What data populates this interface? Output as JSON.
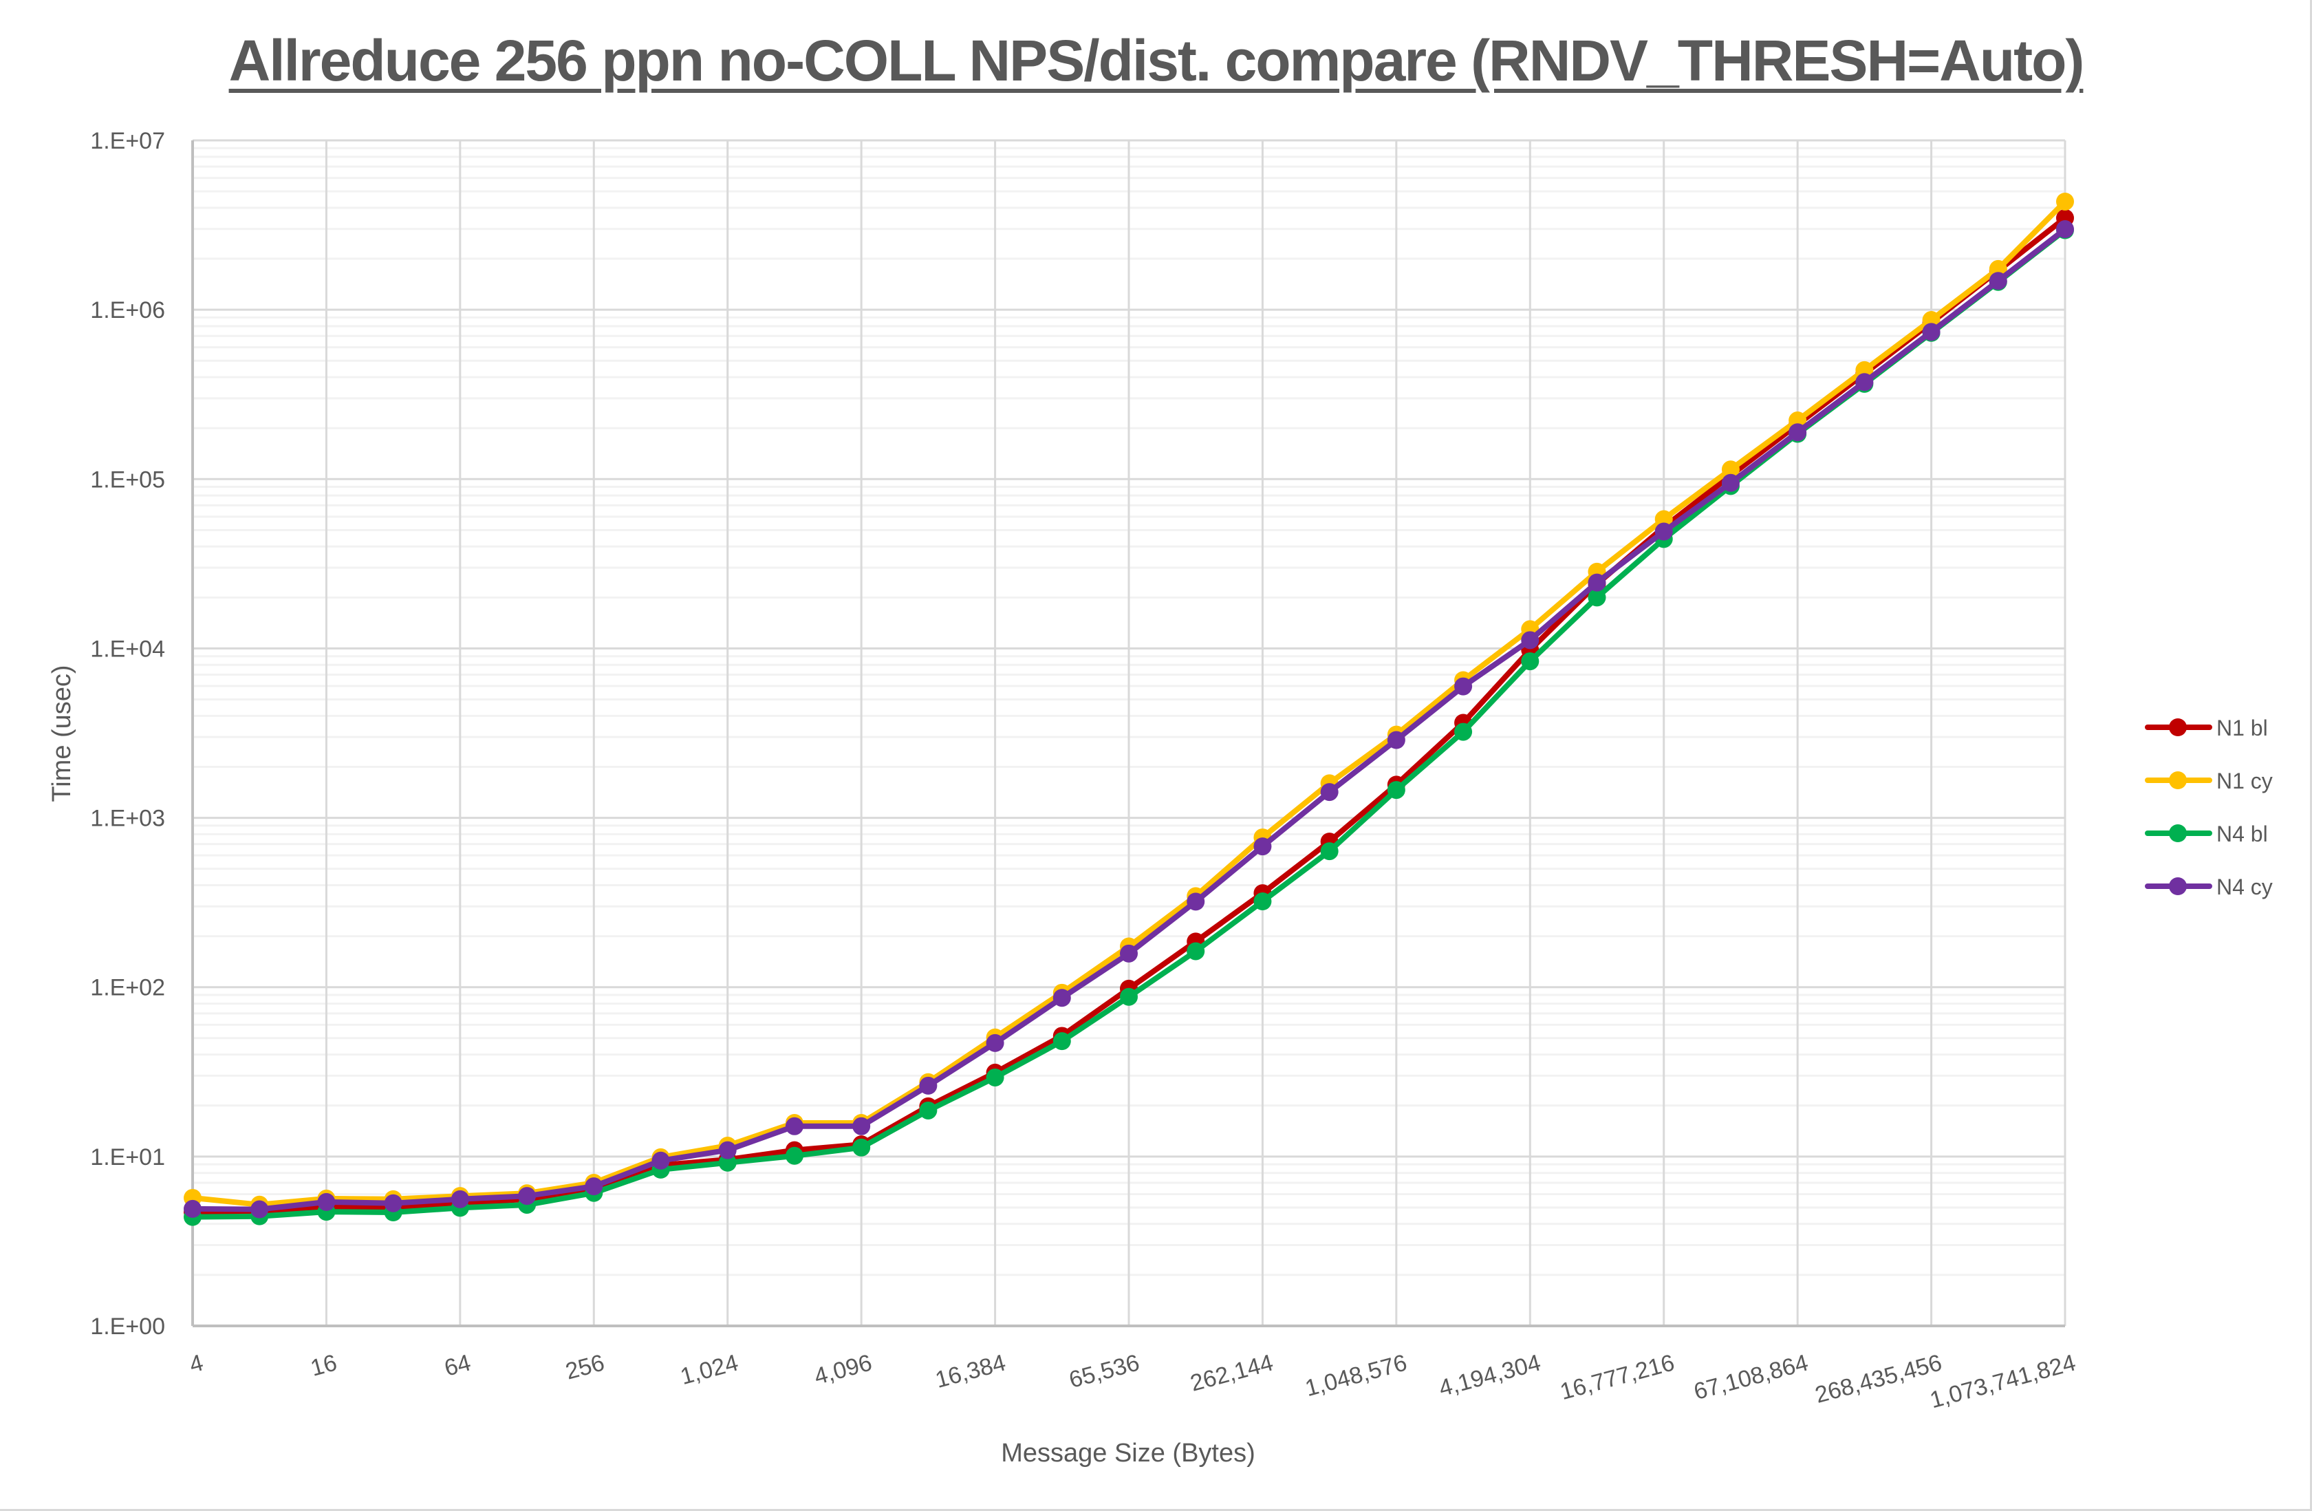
{
  "chart_data": {
    "type": "line",
    "title": "Allreduce 256 ppn no-COLL NPS/dist. compare (RNDV_THRESH=Auto)",
    "xlabel": "Message Size (Bytes)",
    "ylabel": "Time (usec)",
    "y_scale": "log",
    "ylim": [
      1,
      10000000
    ],
    "y_ticks": [
      "1.E+00",
      "1.E+01",
      "1.E+02",
      "1.E+03",
      "1.E+04",
      "1.E+05",
      "1.E+06",
      "1.E+07"
    ],
    "x": [
      4,
      8,
      16,
      32,
      64,
      128,
      256,
      512,
      1024,
      2048,
      4096,
      8192,
      16384,
      32768,
      65536,
      131072,
      262144,
      524288,
      1048576,
      2097152,
      4194304,
      8388608,
      16777216,
      33554432,
      67108864,
      134217728,
      268435456,
      536870912,
      1073741824
    ],
    "x_tick_labels": [
      "4",
      "16",
      "64",
      "256",
      "1,024",
      "4,096",
      "16,384",
      "65,536",
      "262,144",
      "1,048,576",
      "4,194,304",
      "16,777,216",
      "67,108,864",
      "268,435,456",
      "1,073,741,824"
    ],
    "grid": {
      "major": true,
      "minor_y": true,
      "vertical": true
    },
    "legend_position": "right",
    "series": [
      {
        "name": "N1 bl",
        "color": "#c00000",
        "values": [
          4.7,
          4.7,
          5.0,
          5.0,
          5.3,
          5.6,
          6.4,
          8.9,
          9.6,
          10.9,
          11.8,
          19.8,
          31.3,
          51.6,
          98,
          186,
          359,
          724,
          1570,
          3640,
          9800,
          24000,
          52000,
          105000,
          210000,
          420000,
          840000,
          1700000,
          3480000
        ]
      },
      {
        "name": "N1 cy",
        "color": "#ffc000",
        "values": [
          5.7,
          5.2,
          5.65,
          5.6,
          5.85,
          6.07,
          7.0,
          9.9,
          11.6,
          15.8,
          15.8,
          27.5,
          50.5,
          92.7,
          174,
          345,
          766,
          1600,
          3100,
          6500,
          13000,
          28400,
          58000,
          114000,
          222000,
          440000,
          870000,
          1740000,
          4350000
        ]
      },
      {
        "name": "N4 bl",
        "color": "#00b050",
        "values": [
          4.4,
          4.44,
          4.72,
          4.68,
          4.98,
          5.19,
          6.1,
          8.37,
          9.2,
          10.1,
          11.3,
          18.7,
          29.3,
          48,
          87.7,
          163,
          321,
          635,
          1460,
          3220,
          8400,
          20000,
          44300,
          91000,
          185000,
          365000,
          730000,
          1460000,
          2950000
        ]
      },
      {
        "name": "N4 cy",
        "color": "#7030a0",
        "values": [
          4.91,
          4.88,
          5.39,
          5.3,
          5.6,
          5.85,
          6.67,
          9.46,
          10.9,
          15.1,
          15.1,
          26.2,
          46.8,
          86.5,
          158,
          320,
          678,
          1420,
          2880,
          5970,
          11200,
          24500,
          49000,
          95000,
          189000,
          374000,
          740000,
          1480000,
          2990000
        ]
      }
    ]
  },
  "colors": {
    "text": "#595959",
    "axis": "#bfbfbf",
    "grid_major": "#d9d9d9",
    "grid_minor": "#f2f2f2"
  }
}
